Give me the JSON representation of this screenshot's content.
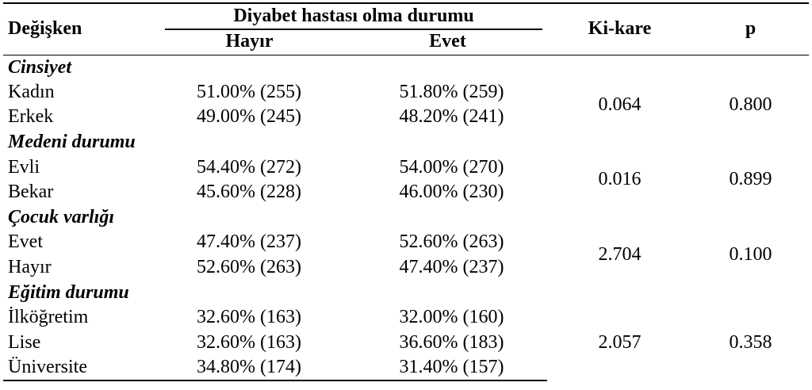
{
  "table": {
    "headers": {
      "variable": "Değişken",
      "group": "Diyabet hastası olma durumu",
      "hayir": "Hayır",
      "evet": "Evet",
      "chi_square": "Ki-kare",
      "p": "p"
    },
    "groups": [
      {
        "category": "Cinsiyet",
        "chi_square": "0.064",
        "p": "0.800",
        "rows": [
          {
            "label": "Kadın",
            "hayir": "51.00% (255)",
            "evet": "51.80% (259)"
          },
          {
            "label": "Erkek",
            "hayir": "49.00% (245)",
            "evet": "48.20% (241)"
          }
        ]
      },
      {
        "category": "Medeni durumu",
        "chi_square": "0.016",
        "p": "0.899",
        "rows": [
          {
            "label": "Evli",
            "hayir": "54.40% (272)",
            "evet": "54.00% (270)"
          },
          {
            "label": "Bekar",
            "hayir": "45.60% (228)",
            "evet": "46.00% (230)"
          }
        ]
      },
      {
        "category": "Çocuk varlığı",
        "chi_square": "2.704",
        "p": "0.100",
        "rows": [
          {
            "label": "Evet",
            "hayir": "47.40% (237)",
            "evet": "52.60% (263)"
          },
          {
            "label": "Hayır",
            "hayir": "52.60% (263)",
            "evet": "47.40% (237)"
          }
        ]
      },
      {
        "category": "Eğitim durumu",
        "chi_square": "2.057",
        "p": "0.358",
        "rows": [
          {
            "label": "İlköğretim",
            "hayir": "32.60% (163)",
            "evet": "32.00% (160)"
          },
          {
            "label": "Lise",
            "hayir": "32.60% (163)",
            "evet": "36.60% (183)"
          },
          {
            "label": "Üniversite",
            "hayir": "34.80% (174)",
            "evet": "31.40% (157)"
          }
        ]
      }
    ]
  }
}
